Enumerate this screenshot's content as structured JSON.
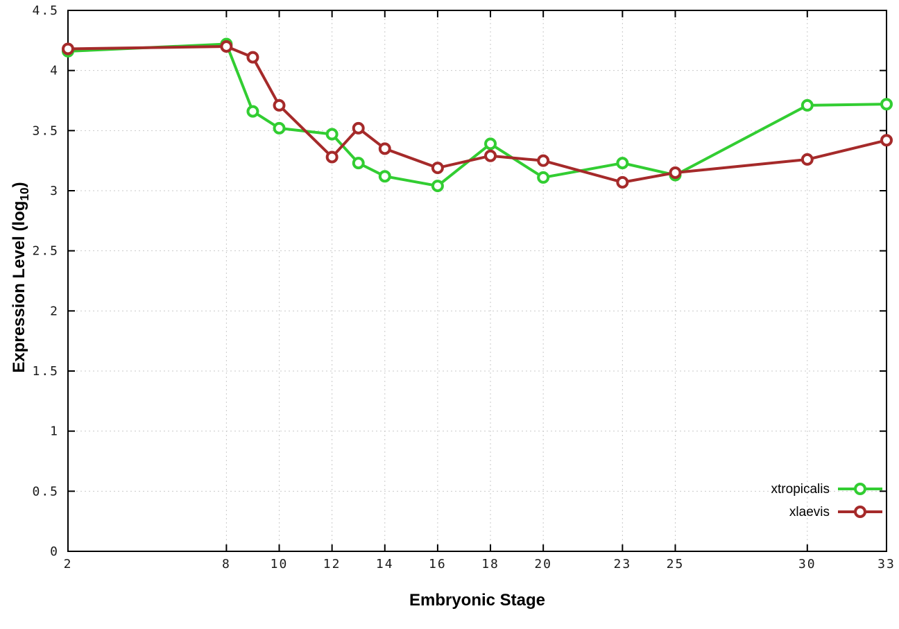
{
  "axis": {
    "xlabel": "Embryonic Stage",
    "ylabel_prefix": "Expression Level (log",
    "ylabel_sub": "10",
    "ylabel_suffix": ")"
  },
  "chart_data": {
    "type": "line",
    "title": "",
    "xlabel": "Embryonic Stage",
    "ylabel": "Expression Level (log10)",
    "xlim": [
      2,
      33
    ],
    "ylim": [
      0,
      4.5
    ],
    "y_tick_step": 0.5,
    "x_tick_labels": [
      2,
      8,
      10,
      12,
      14,
      16,
      18,
      20,
      23,
      25,
      30,
      33
    ],
    "grid": true,
    "legend_position": "bottom-right",
    "x": [
      2,
      8,
      9,
      10,
      12,
      13,
      14,
      16,
      18,
      20,
      23,
      25,
      30,
      33
    ],
    "series": [
      {
        "name": "xtropicalis",
        "color": "#32cd32",
        "values": [
          4.16,
          4.22,
          3.66,
          3.52,
          3.47,
          3.23,
          3.12,
          3.04,
          3.39,
          3.11,
          3.23,
          3.13,
          3.71,
          3.72
        ]
      },
      {
        "name": "xlaevis",
        "color": "#a52a2a",
        "values": [
          4.18,
          4.2,
          4.11,
          3.71,
          3.28,
          3.52,
          3.35,
          3.19,
          3.29,
          3.25,
          3.07,
          3.15,
          3.26,
          3.42
        ]
      }
    ],
    "colors": {
      "grid": "#c9c9c9",
      "axis": "#000000",
      "tick_text": "#1a1a1a",
      "marker_fill": "#ffffff",
      "background": "#ffffff"
    }
  }
}
